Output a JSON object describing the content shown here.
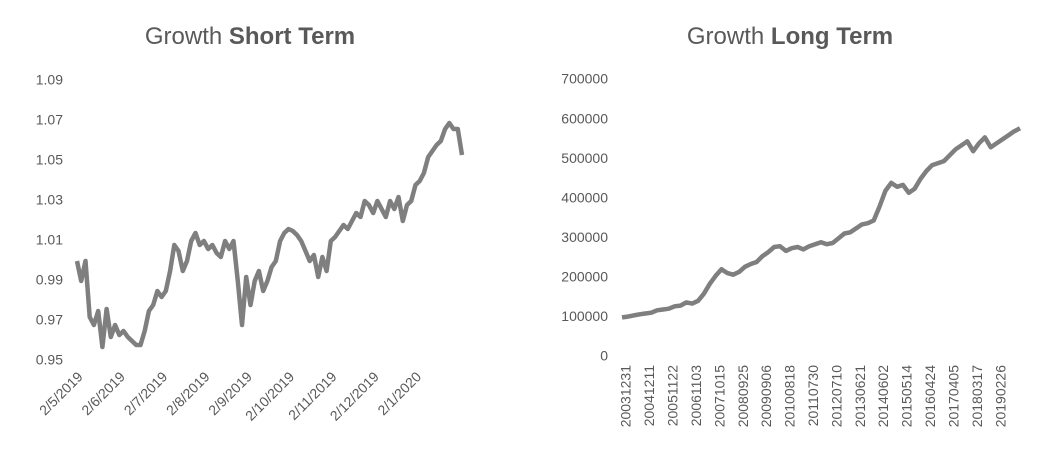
{
  "chart_data": [
    {
      "type": "line",
      "title": [
        "Growth",
        "Short Term"
      ],
      "color": "#7f7f7f",
      "grid": false,
      "categories": [
        "2/5/2019",
        null,
        null,
        null,
        null,
        null,
        null,
        null,
        null,
        null,
        "2/6/2019",
        null,
        null,
        null,
        null,
        null,
        null,
        null,
        null,
        null,
        "2/7/2019",
        null,
        null,
        null,
        null,
        null,
        null,
        null,
        null,
        null,
        "2/8/2019",
        null,
        null,
        null,
        null,
        null,
        null,
        null,
        null,
        null,
        "2/9/2019",
        null,
        null,
        null,
        null,
        null,
        null,
        null,
        null,
        null,
        "2/10/2019",
        null,
        null,
        null,
        null,
        null,
        null,
        null,
        null,
        null,
        "2/11/2019",
        null,
        null,
        null,
        null,
        null,
        null,
        null,
        null,
        null,
        "2/12/2019",
        null,
        null,
        null,
        null,
        null,
        null,
        null,
        null,
        null,
        "2/1/2020",
        null,
        null,
        null,
        null,
        null,
        null,
        null,
        null,
        null,
        null,
        null
      ],
      "values": [
        1.0,
        0.99,
        1.0,
        0.972,
        0.968,
        0.975,
        0.957,
        0.976,
        0.962,
        0.968,
        0.963,
        0.965,
        0.962,
        0.96,
        0.958,
        0.958,
        0.965,
        0.975,
        0.978,
        0.985,
        0.982,
        0.985,
        0.995,
        1.008,
        1.005,
        0.995,
        1.0,
        1.01,
        1.014,
        1.008,
        1.01,
        1.006,
        1.008,
        1.004,
        1.002,
        1.01,
        1.006,
        1.01,
        0.99,
        0.968,
        0.992,
        0.978,
        0.99,
        0.995,
        0.985,
        0.99,
        0.997,
        1.0,
        1.01,
        1.014,
        1.016,
        1.015,
        1.013,
        1.01,
        1.005,
        1.0,
        1.003,
        0.992,
        1.002,
        0.995,
        1.01,
        1.012,
        1.015,
        1.018,
        1.016,
        1.02,
        1.024,
        1.022,
        1.03,
        1.028,
        1.024,
        1.03,
        1.026,
        1.022,
        1.03,
        1.026,
        1.032,
        1.02,
        1.028,
        1.03,
        1.038,
        1.04,
        1.044,
        1.052,
        1.055,
        1.058,
        1.06,
        1.066,
        1.069,
        1.066,
        1.066,
        1.053
      ],
      "ylim": [
        0.95,
        1.09
      ],
      "yticks": [
        0.95,
        0.97,
        0.99,
        1.01,
        1.03,
        1.05,
        1.07,
        1.09
      ]
    },
    {
      "type": "line",
      "title": [
        "Growth",
        "Long Term"
      ],
      "color": "#7f7f7f",
      "grid": false,
      "categories": [
        "20031231",
        null,
        null,
        null,
        "20041211",
        null,
        null,
        null,
        "20051122",
        null,
        null,
        null,
        "20061103",
        null,
        null,
        null,
        "20071015",
        null,
        null,
        null,
        "20080925",
        null,
        null,
        null,
        "20090906",
        null,
        null,
        null,
        "20100818",
        null,
        null,
        null,
        "20110730",
        null,
        null,
        null,
        "20120710",
        null,
        null,
        null,
        "20130621",
        null,
        null,
        null,
        "20140602",
        null,
        null,
        null,
        "20150514",
        null,
        null,
        null,
        "20160424",
        null,
        null,
        null,
        "20170405",
        null,
        null,
        null,
        "20180317",
        null,
        null,
        null,
        "20190226",
        null,
        null,
        null,
        null
      ],
      "values": [
        100000,
        102000,
        105000,
        108000,
        110000,
        112000,
        118000,
        120000,
        122000,
        128000,
        130000,
        138000,
        135000,
        142000,
        160000,
        185000,
        205000,
        222000,
        212000,
        208000,
        215000,
        228000,
        235000,
        240000,
        255000,
        265000,
        278000,
        280000,
        268000,
        275000,
        278000,
        272000,
        280000,
        285000,
        290000,
        285000,
        288000,
        300000,
        312000,
        315000,
        325000,
        335000,
        338000,
        345000,
        380000,
        420000,
        440000,
        430000,
        435000,
        415000,
        425000,
        450000,
        470000,
        485000,
        490000,
        495000,
        510000,
        525000,
        535000,
        545000,
        520000,
        540000,
        555000,
        530000,
        540000,
        550000,
        560000,
        570000,
        578000
      ],
      "ylim": [
        0,
        700000
      ],
      "yticks": [
        0,
        100000,
        200000,
        300000,
        400000,
        500000,
        600000,
        700000
      ]
    }
  ]
}
